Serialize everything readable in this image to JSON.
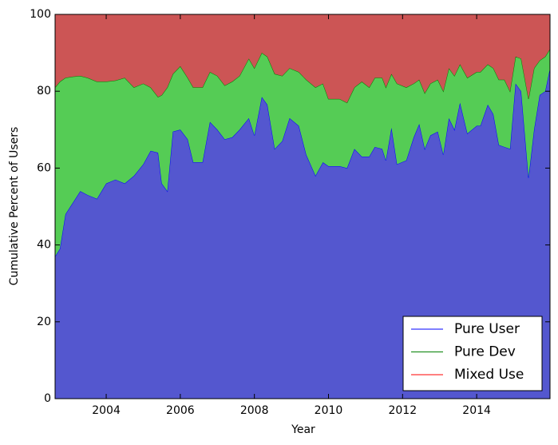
{
  "chart_data": {
    "type": "stacked_area",
    "xlabel": "Year",
    "ylabel": "Cumulative Percent of Users",
    "x": [
      2002.62,
      2002.75,
      2002.9,
      2003.1,
      2003.3,
      2003.5,
      2003.75,
      2004.0,
      2004.25,
      2004.5,
      2004.75,
      2005.0,
      2005.2,
      2005.4,
      2005.5,
      2005.65,
      2005.8,
      2006.0,
      2006.2,
      2006.35,
      2006.6,
      2006.8,
      2007.0,
      2007.2,
      2007.4,
      2007.6,
      2007.85,
      2008.0,
      2008.2,
      2008.35,
      2008.55,
      2008.75,
      2008.95,
      2009.2,
      2009.4,
      2009.65,
      2009.85,
      2010.0,
      2010.3,
      2010.5,
      2010.7,
      2010.9,
      2011.1,
      2011.25,
      2011.45,
      2011.55,
      2011.7,
      2011.85,
      2012.1,
      2012.3,
      2012.45,
      2012.6,
      2012.75,
      2012.95,
      2013.1,
      2013.25,
      2013.4,
      2013.55,
      2013.75,
      2014.0,
      2014.1,
      2014.3,
      2014.45,
      2014.6,
      2014.75,
      2014.9,
      2015.05,
      2015.2,
      2015.4,
      2015.55,
      2015.7,
      2015.85,
      2015.98
    ],
    "series": [
      {
        "name": "Pure User",
        "color": "#0000ff",
        "fill": "#5457cf",
        "values": [
          37,
          39,
          48,
          51,
          54,
          53,
          52,
          56,
          57,
          56,
          58,
          61,
          64.5,
          64,
          56,
          54,
          69.5,
          70,
          67.5,
          61.5,
          61.5,
          72,
          70,
          67.5,
          68,
          70,
          73,
          68.5,
          78.5,
          76.5,
          65,
          67,
          73,
          71,
          63.5,
          58,
          61.5,
          60.5,
          60.5,
          60,
          65,
          63,
          63,
          65.5,
          65,
          62,
          70.5,
          61,
          62,
          68,
          71.5,
          65,
          68.5,
          69.5,
          63.5,
          73,
          70,
          77,
          69,
          71,
          71,
          76.5,
          74,
          66,
          65.5,
          65,
          82,
          80,
          57.5,
          70,
          79,
          80,
          86
        ]
      },
      {
        "name": "Pure Dev",
        "color": "#008000",
        "fill": "#55cc55",
        "values": [
          44,
          43.5,
          35.5,
          32.8,
          30,
          30.5,
          30.5,
          26.5,
          25.8,
          27.5,
          23,
          21,
          16.5,
          14.5,
          23,
          27,
          15,
          16.5,
          16,
          19.5,
          19.5,
          13,
          14,
          14,
          14.5,
          14,
          15.5,
          17.5,
          11.5,
          12.5,
          19.5,
          17,
          13,
          14,
          19.5,
          23,
          20.5,
          17.5,
          17.5,
          17,
          16,
          19.5,
          18,
          18,
          18.5,
          19,
          14,
          21,
          19,
          14,
          11.5,
          14.5,
          13.5,
          13.5,
          16.5,
          13,
          14,
          10,
          14.5,
          14,
          14,
          10.5,
          12,
          17,
          17.5,
          15,
          7,
          8.5,
          20.5,
          16,
          9,
          9,
          5
        ]
      },
      {
        "name": "Mixed Use",
        "color": "#ff0000",
        "fill": "#cc5555",
        "values": [
          19,
          17.5,
          16.5,
          16.2,
          16,
          16.5,
          17.5,
          17.5,
          17.2,
          16.5,
          19,
          18,
          19,
          21.5,
          21,
          19,
          15.5,
          13.5,
          16.5,
          19,
          19,
          15,
          16,
          18.5,
          17.5,
          16,
          11.5,
          14,
          10,
          11,
          15.5,
          16,
          14,
          15,
          17,
          19,
          18,
          22,
          22,
          23,
          19,
          17.5,
          19,
          16.5,
          16.5,
          19,
          15.5,
          18,
          19,
          18,
          17,
          20.5,
          18,
          17,
          20,
          14,
          16,
          13,
          16.5,
          15,
          15,
          13,
          14,
          17,
          17,
          20,
          11,
          11.5,
          22,
          14,
          12,
          11,
          9
        ]
      }
    ],
    "xlim": [
      2002.62,
      2015.98
    ],
    "ylim": [
      0,
      100
    ],
    "xticks": [
      2004,
      2006,
      2008,
      2010,
      2012,
      2014
    ],
    "yticks": [
      0,
      20,
      40,
      60,
      80,
      100
    ],
    "legend": "lower right"
  }
}
